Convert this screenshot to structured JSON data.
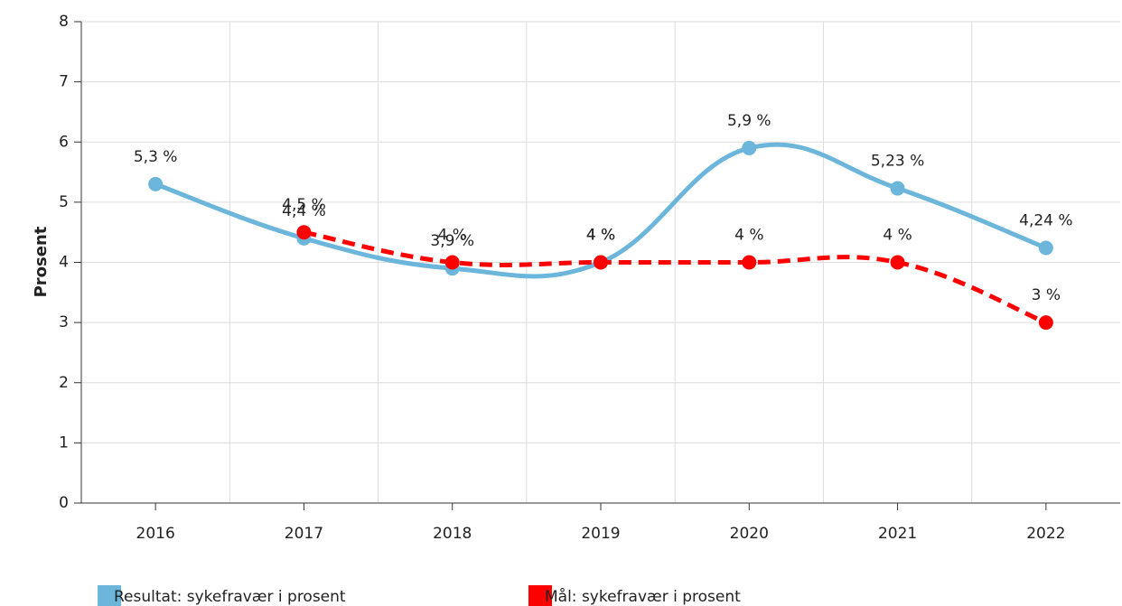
{
  "chart_data": {
    "type": "line",
    "ylabel": "Prosent",
    "categories": [
      "2016",
      "2017",
      "2018",
      "2019",
      "2020",
      "2021",
      "2022"
    ],
    "series": [
      {
        "name": "Resultat: sykefravær i prosent",
        "color": "#6cb6dc",
        "dashed": false,
        "values": [
          5.3,
          4.4,
          3.9,
          4,
          5.9,
          5.23,
          4.24
        ],
        "value_labels": [
          "5,3 %",
          "4,4 %",
          "3,9 %",
          "4 %",
          "5,9 %",
          "5,23 %",
          "4,24 %"
        ]
      },
      {
        "name": "Mål: sykefravær i prosent",
        "color": "#ff0000",
        "dashed": true,
        "values": [
          null,
          4.5,
          4,
          4,
          4,
          4,
          3
        ],
        "value_labels": [
          null,
          "4,5 %",
          "4 %",
          "4 %",
          "4 %",
          "4 %",
          "3 %"
        ]
      }
    ],
    "ylim": [
      0,
      8
    ],
    "yticks": [
      0,
      1,
      2,
      3,
      4,
      5,
      6,
      7,
      8
    ],
    "grid": true,
    "legend": "bottom"
  }
}
